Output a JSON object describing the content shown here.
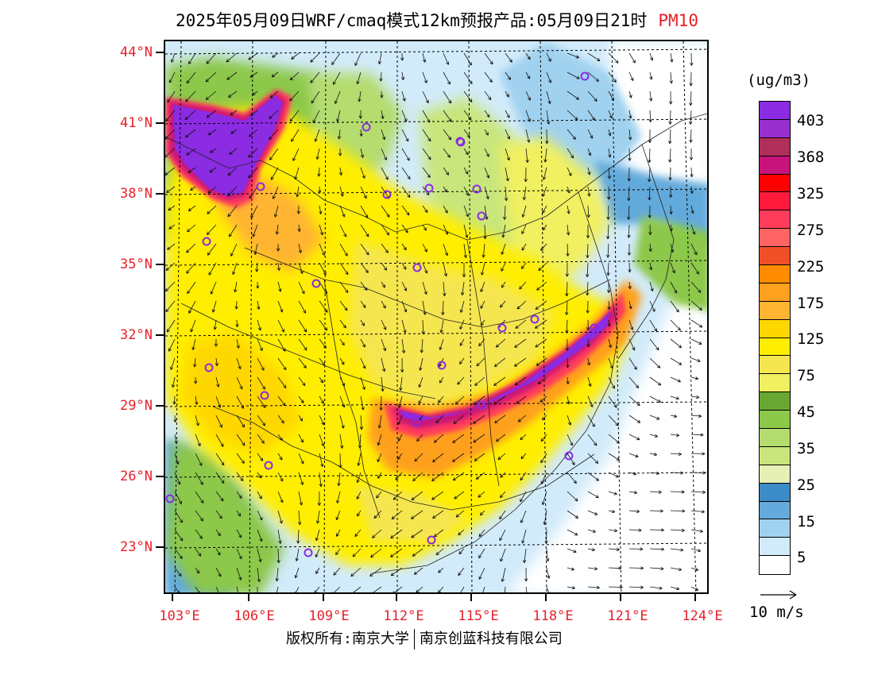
{
  "title": {
    "text": "2025年05月09日WRF/cmaq模式12km预报产品:05月09日21时",
    "pollutant": "PM10"
  },
  "latitude_labels": [
    "44°N",
    "41°N",
    "38°N",
    "35°N",
    "32°N",
    "29°N",
    "26°N",
    "23°N"
  ],
  "longitude_labels": [
    "103°E",
    "106°E",
    "109°E",
    "112°E",
    "115°E",
    "118°E",
    "121°E",
    "124°E"
  ],
  "colorbar": {
    "unit": "(ug/m3)",
    "colors": [
      "#8b2be2",
      "#9a2fd0",
      "#b02e5a",
      "#c8147a",
      "#ff0000",
      "#ff1a3c",
      "#ff3c5a",
      "#ff6464",
      "#f05028",
      "#ff8c00",
      "#ffa01e",
      "#ffb432",
      "#ffd700",
      "#ffee00",
      "#f5e650",
      "#f0f060",
      "#68a832",
      "#8cc84a",
      "#b4dc6e",
      "#c8e67c",
      "#e6f0b4",
      "#3c8cc8",
      "#64aadc",
      "#a0d2f0",
      "#d2ebfa",
      "#ffffff"
    ],
    "labels": [
      "403",
      "368",
      "325",
      "275",
      "225",
      "175",
      "125",
      "75",
      "45",
      "35",
      "25",
      "15",
      "5"
    ]
  },
  "wind": {
    "reference_label": "10 m/s"
  },
  "footer": {
    "left": "版权所有:南京大学",
    "right": "南京创蓝科技有限公司"
  }
}
